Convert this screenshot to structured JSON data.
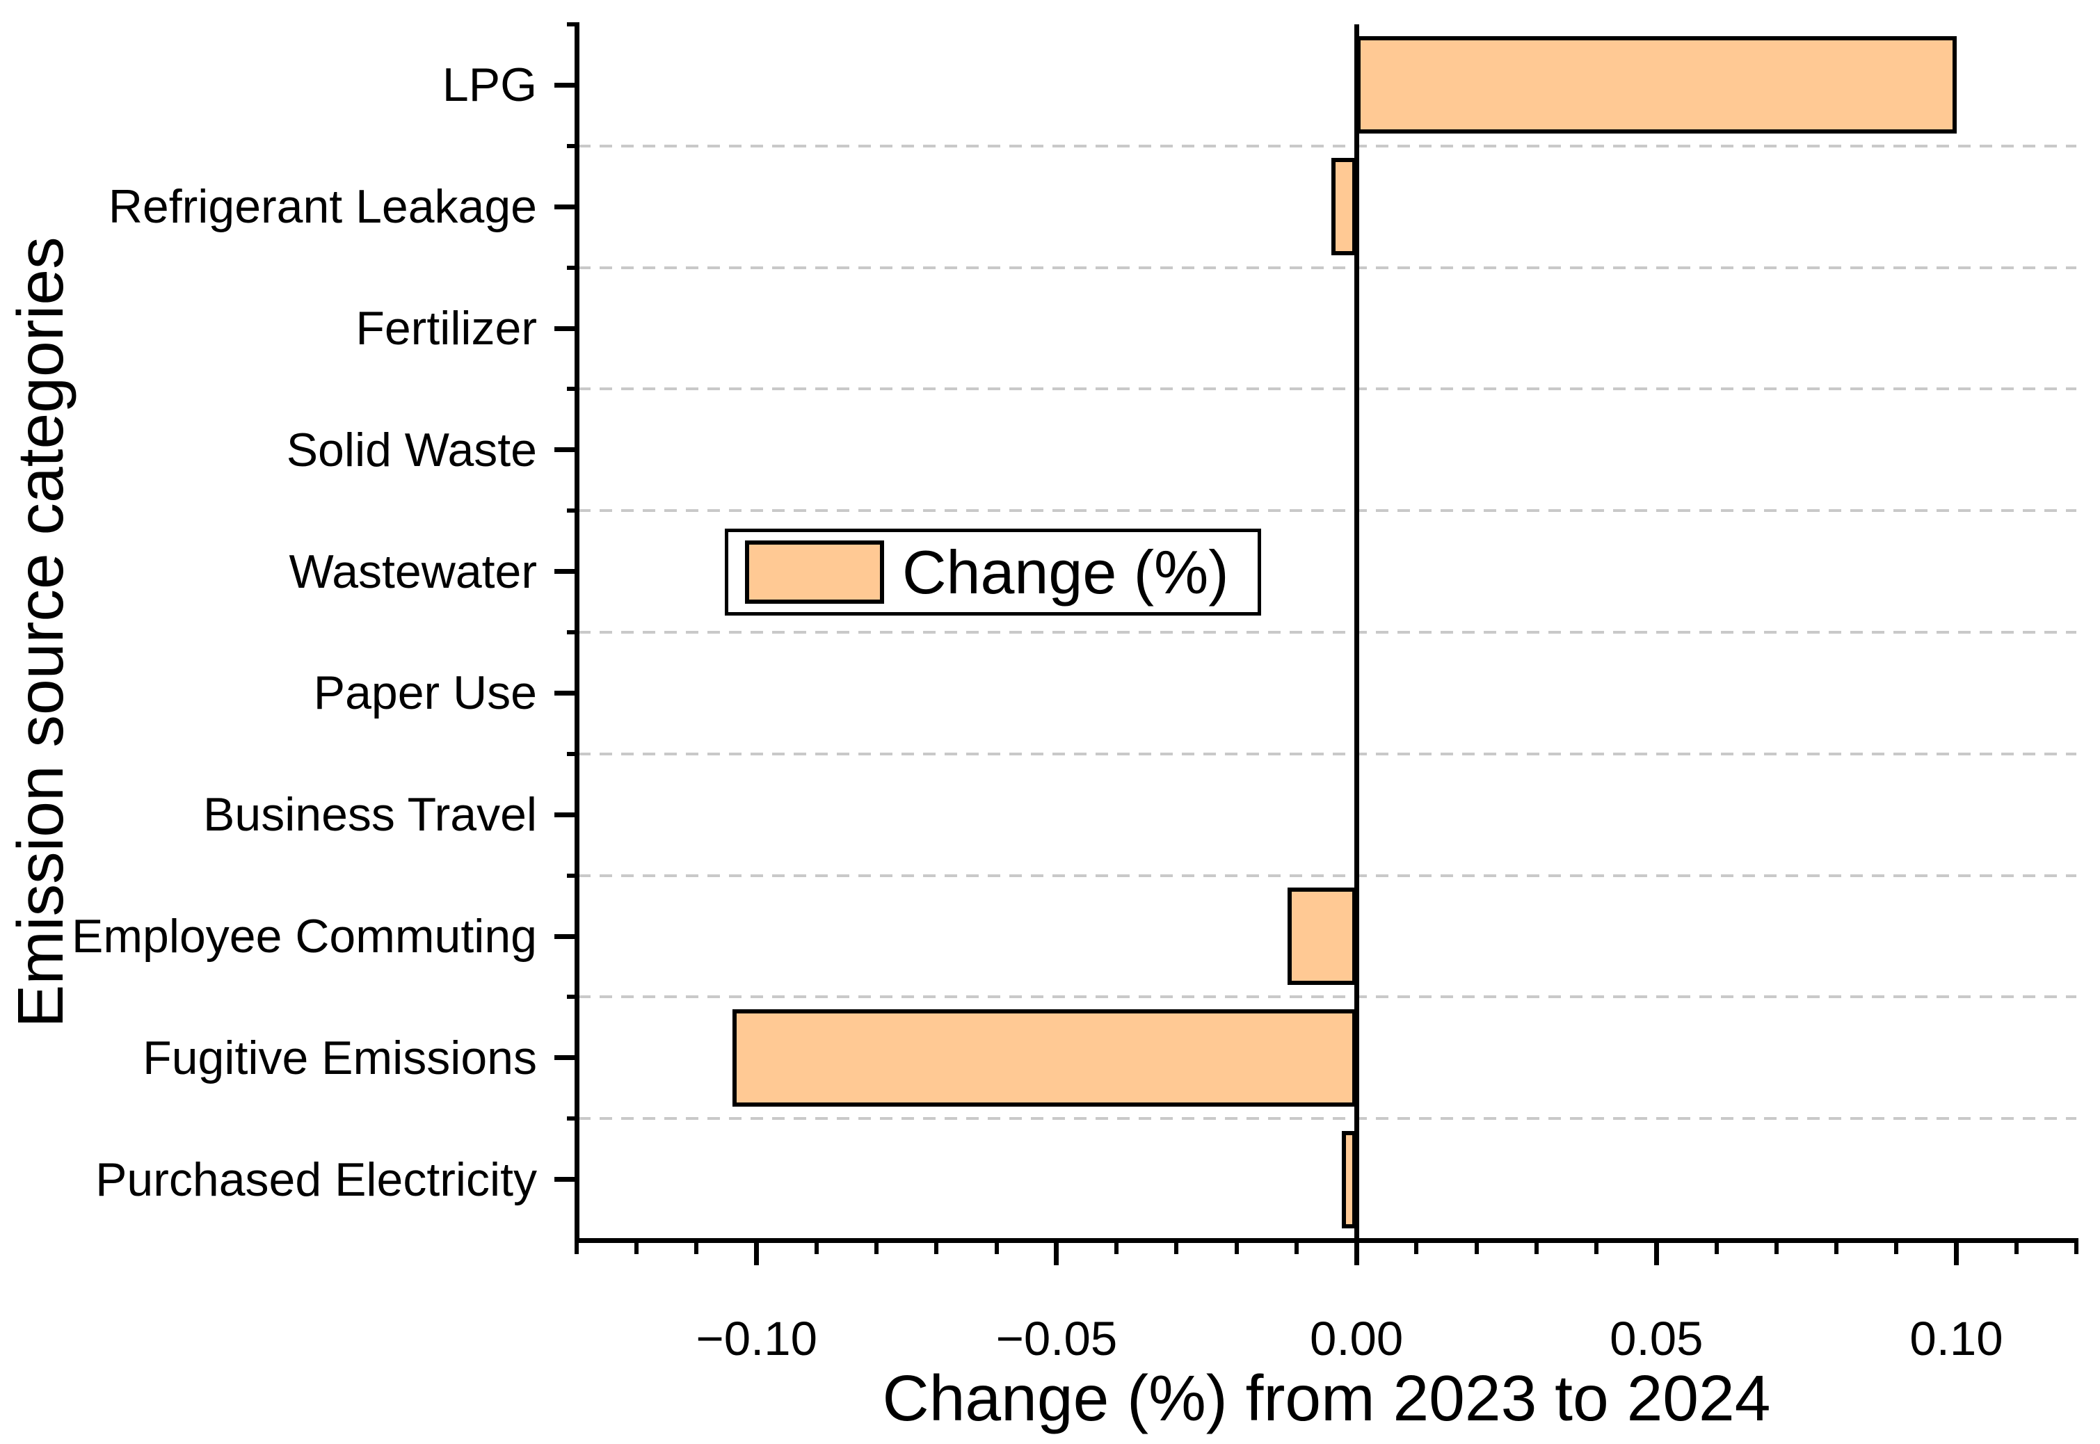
{
  "chart_data": {
    "type": "bar",
    "orientation": "horizontal",
    "title": "",
    "xlabel": "Change (%) from 2023 to 2024",
    "ylabel": "Emission source categories",
    "categories": [
      "LPG",
      "Refrigerant Leakage",
      "Fertilizer",
      "Solid Waste",
      "Wastewater",
      "Paper Use",
      "Business Travel",
      "Employee Commuting",
      "Fugitive Emissions",
      "Purchased Electricity"
    ],
    "series": [
      {
        "name": "Change (%)",
        "values": [
          0.1,
          -0.0042,
          0,
          0,
          0,
          0,
          0,
          -0.0115,
          -0.104,
          -0.0024
        ]
      }
    ],
    "xlim": [
      -0.13,
      0.12
    ],
    "x_major_ticks": [
      -0.1,
      -0.05,
      0,
      0.05,
      0.1
    ],
    "x_tick_labels": [
      "−0.10",
      "−0.05",
      "0.00",
      "0.05",
      "0.10"
    ],
    "x_minor_tick_step": 0.01,
    "grid": {
      "horizontal_dashed": true,
      "color": "#c9c9c9"
    },
    "legend": {
      "label": "Change (%)",
      "location": "center-left"
    },
    "colors": {
      "bar_fill": "#FFC994",
      "bar_edge": "#000000",
      "axis": "#000000"
    }
  }
}
